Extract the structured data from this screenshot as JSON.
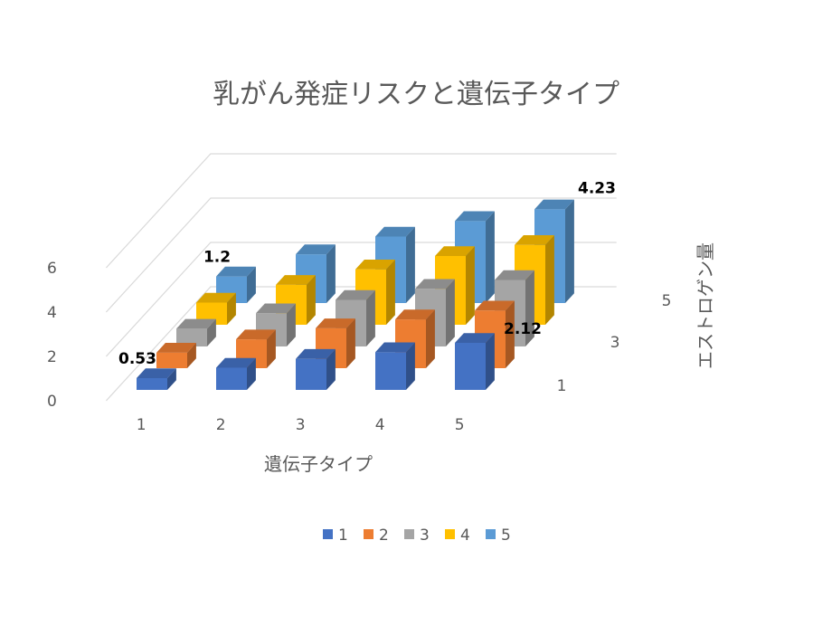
{
  "chart_data": {
    "type": "bar",
    "subtype": "3d-column",
    "title": "乳がん発症リスクと遺伝子タイプ",
    "xlabel": "遺伝子タイプ",
    "zlabel": "エストロゲン量",
    "categories": [
      "1",
      "2",
      "3",
      "4",
      "5"
    ],
    "depth_ticks": [
      "1",
      "3",
      "5"
    ],
    "yticks": [
      "0",
      "2",
      "4",
      "6"
    ],
    "ylim": [
      0,
      6
    ],
    "grid": true,
    "legend_position": "bottom",
    "series": [
      {
        "name": "1",
        "color": "#4472c4",
        "values": [
          0.53,
          1.0,
          1.4,
          1.7,
          2.12
        ]
      },
      {
        "name": "2",
        "color": "#ed7d31",
        "values": [
          0.7,
          1.3,
          1.8,
          2.2,
          2.6
        ]
      },
      {
        "name": "3",
        "color": "#a5a5a5",
        "values": [
          0.8,
          1.5,
          2.1,
          2.6,
          3.0
        ]
      },
      {
        "name": "4",
        "color": "#ffc000",
        "values": [
          1.0,
          1.8,
          2.5,
          3.1,
          3.6
        ]
      },
      {
        "name": "5",
        "color": "#5b9bd5",
        "values": [
          1.2,
          2.2,
          3.0,
          3.7,
          4.23
        ]
      }
    ],
    "data_labels": [
      {
        "series": 0,
        "index": 0,
        "text": "0.53"
      },
      {
        "series": 4,
        "index": 0,
        "text": "1.2"
      },
      {
        "series": 0,
        "index": 4,
        "text": "2.12"
      },
      {
        "series": 4,
        "index": 4,
        "text": "4.23"
      }
    ]
  }
}
